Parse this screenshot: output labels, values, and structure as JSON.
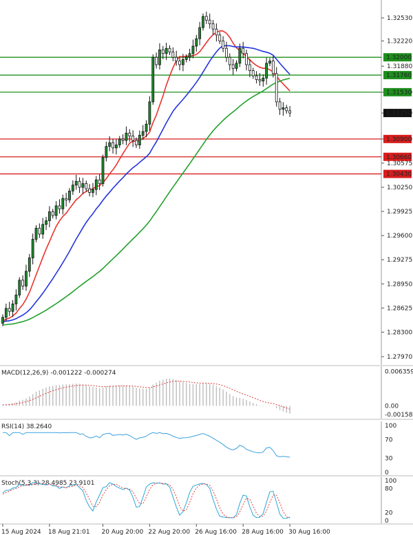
{
  "chart_data": {
    "type": "candlestick",
    "colors": {
      "bull": "#1f8f2f",
      "bear": "#1f8f2f",
      "wick": "#111111",
      "ma_fast": "#e8322c",
      "ma_mid": "#2233dd",
      "ma_slow": "#22a02a",
      "support": "#d91e1e",
      "resistance": "#1e8f1e",
      "current_bg": "#111111"
    },
    "price_axis": {
      "range": [
        1.2782,
        1.3268
      ],
      "ticks": [
        "1.32530",
        "1.32220",
        "1.31880",
        "1.31530",
        "1.31250",
        "1.30900",
        "1.30575",
        "1.30250",
        "1.29925",
        "1.29600",
        "1.29275",
        "1.28950",
        "1.28625",
        "1.28300",
        "1.27970"
      ]
    },
    "x_axis": {
      "labels": [
        {
          "text": "15 Aug 2024",
          "index": 0
        },
        {
          "text": "18 Aug 21:01",
          "index": 14
        },
        {
          "text": "20 Aug 20:00",
          "index": 30
        },
        {
          "text": "22 Aug 20:00",
          "index": 44
        },
        {
          "text": "26 Aug 16:00",
          "index": 58
        },
        {
          "text": "28 Aug 16:00",
          "index": 72
        },
        {
          "text": "30 Aug 16:00",
          "index": 86
        }
      ]
    },
    "levels": [
      {
        "value": 1.32,
        "label": "1.32000",
        "kind": "resistance"
      },
      {
        "value": 1.3176,
        "label": "1.31760",
        "kind": "resistance"
      },
      {
        "value": 1.3153,
        "label": "1.31530",
        "kind": "resistance"
      },
      {
        "value": 1.309,
        "label": "1.30900",
        "kind": "support"
      },
      {
        "value": 1.3066,
        "label": "1.30660",
        "kind": "support"
      },
      {
        "value": 1.3043,
        "label": "1.30430",
        "kind": "support"
      }
    ],
    "current_price": {
      "value": 1.3125,
      "label": "1.31250"
    },
    "candles_close": [
      1.285,
      1.2862,
      1.2858,
      1.2868,
      1.288,
      1.29,
      1.2892,
      1.2912,
      1.293,
      1.2955,
      1.297,
      1.2962,
      1.2975,
      1.298,
      1.2992,
      1.2987,
      1.3,
      1.2996,
      1.301,
      1.3008,
      1.302,
      1.3028,
      1.3033,
      1.3025,
      1.303,
      1.3023,
      1.3018,
      1.3022,
      1.3035,
      1.303,
      1.3065,
      1.308,
      1.3085,
      1.3078,
      1.3082,
      1.309,
      1.3088,
      1.3098,
      1.3094,
      1.3088,
      1.3082,
      1.3095,
      1.31,
      1.311,
      1.314,
      1.32,
      1.319,
      1.321,
      1.3205,
      1.3212,
      1.3207,
      1.32,
      1.3195,
      1.319,
      1.3197,
      1.32,
      1.3205,
      1.3215,
      1.3225,
      1.324,
      1.3255,
      1.325,
      1.3245,
      1.3238,
      1.323,
      1.3222,
      1.3212,
      1.32,
      1.319,
      1.3185,
      1.3192,
      1.3212,
      1.3205,
      1.319,
      1.3182,
      1.3175,
      1.317,
      1.3168,
      1.3172,
      1.3192,
      1.3195,
      1.3178,
      1.314,
      1.313,
      1.3132,
      1.3128,
      1.3125
    ],
    "macd": {
      "label": "MACD(12,26,9) -0.001222 -0.000274",
      "ticks": [
        "0.006359",
        "0.00",
        "-0.001583"
      ],
      "range": [
        -0.00185,
        0.0068
      ]
    },
    "rsi": {
      "label": "RSI(14) 38.2640",
      "ticks": [
        "100",
        "70",
        "30",
        "0"
      ],
      "range": [
        0,
        100
      ]
    },
    "stoch": {
      "label": "Stoch(5,3,3) 28.4985 23.9101",
      "ticks": [
        "100",
        "80",
        "20",
        "0"
      ],
      "range": [
        0,
        100
      ]
    }
  }
}
